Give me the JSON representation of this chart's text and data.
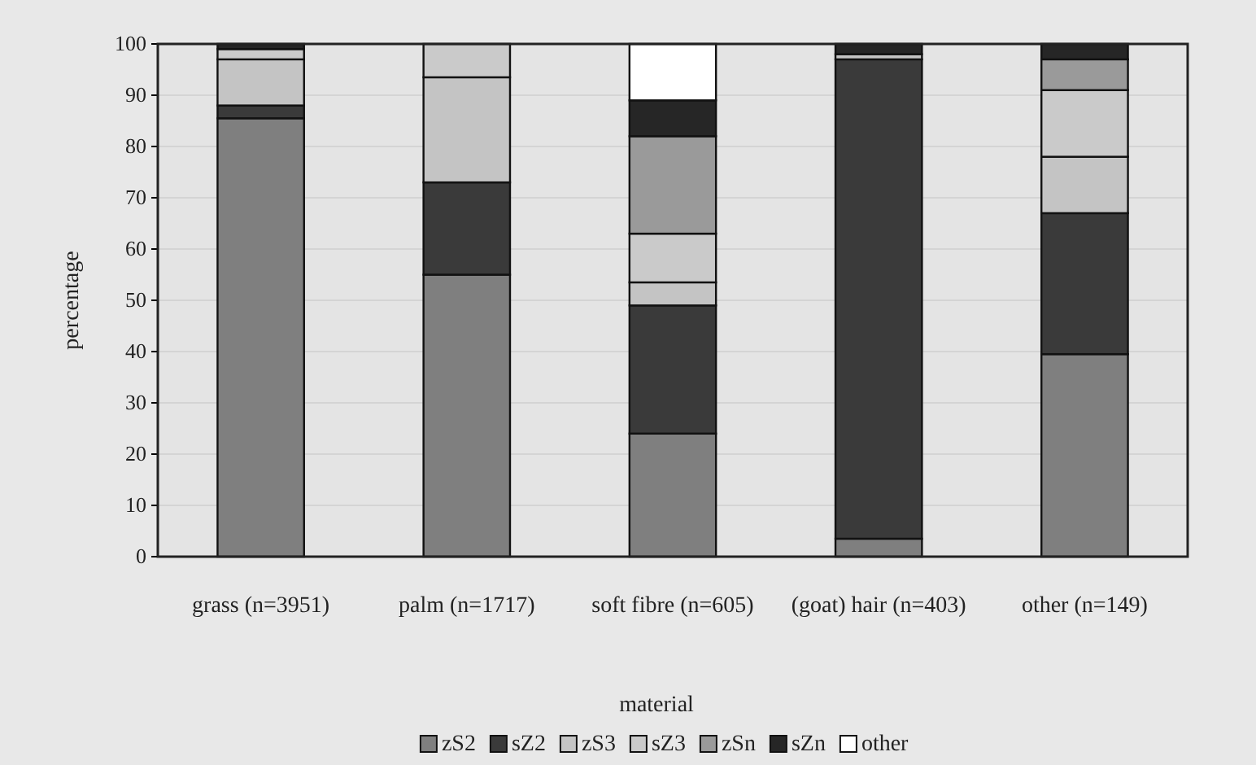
{
  "chart_data": {
    "type": "bar",
    "stacked": true,
    "xlabel": "material",
    "ylabel": "percentage",
    "categories": [
      "grass (n=3951)",
      "palm (n=1717)",
      "soft fibre (n=605)",
      "(goat) hair (n=403)",
      "other (n=149)"
    ],
    "ylim": [
      0,
      100
    ],
    "yticks": [
      0,
      10,
      20,
      30,
      40,
      50,
      60,
      70,
      80,
      90,
      100
    ],
    "grid": "y",
    "legend": "bottom",
    "series": [
      {
        "name": "zS2",
        "color": "#7f7f7f",
        "values": [
          85.5,
          55,
          24,
          3.5,
          39.5
        ]
      },
      {
        "name": "sZ2",
        "color": "#3a3a3a",
        "values": [
          2.5,
          18,
          25,
          93.5,
          27.5
        ]
      },
      {
        "name": "zS3",
        "color": "#c4c4c4",
        "values": [
          9,
          20.5,
          4.5,
          1,
          11
        ]
      },
      {
        "name": "sZ3",
        "color": "#cacaca",
        "values": [
          2,
          6.5,
          9.5,
          0,
          13
        ]
      },
      {
        "name": "zSn",
        "color": "#9a9a9a",
        "values": [
          0,
          0,
          19,
          0,
          6
        ]
      },
      {
        "name": "sZn",
        "color": "#262626",
        "values": [
          1,
          0,
          7,
          2,
          3
        ]
      },
      {
        "name": "other",
        "color": "#ffffff",
        "values": [
          0,
          0,
          11,
          0,
          0
        ]
      }
    ]
  }
}
